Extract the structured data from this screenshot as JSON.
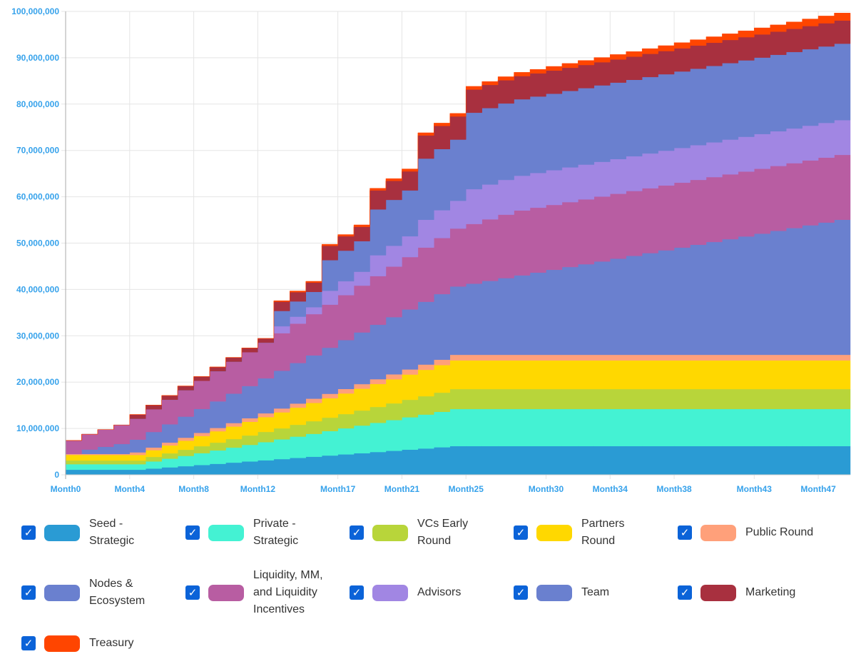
{
  "chart_data": {
    "type": "area",
    "stacked": true,
    "stepped": true,
    "title": "",
    "xlabel": "",
    "ylabel": "",
    "ylim": [
      0,
      100000000
    ],
    "yticks": [
      "0",
      "10,000,000",
      "20,000,000",
      "30,000,000",
      "40,000,000",
      "50,000,000",
      "60,000,000",
      "70,000,000",
      "80,000,000",
      "90,000,000",
      "100,000,000"
    ],
    "grid": true,
    "legend_placement": "bottom",
    "categories": [
      "Month0",
      "Month1",
      "Month2",
      "Month3",
      "Month4",
      "Month5",
      "Month6",
      "Month7",
      "Month8",
      "Month9",
      "Month10",
      "Month11",
      "Month12",
      "Month13",
      "Month14",
      "Month15",
      "Month16",
      "Month17",
      "Month18",
      "Month19",
      "Month20",
      "Month21",
      "Month22",
      "Month23",
      "Month24",
      "Month25",
      "Month26",
      "Month27",
      "Month28",
      "Month29",
      "Month30",
      "Month31",
      "Month32",
      "Month33",
      "Month34",
      "Month35",
      "Month36",
      "Month37",
      "Month38",
      "Month39",
      "Month40",
      "Month41",
      "Month42",
      "Month43",
      "Month44",
      "Month45",
      "Month46",
      "Month47",
      "Month48"
    ],
    "xticks_shown": [
      "Month0",
      "Month4",
      "Month8",
      "Month12",
      "Month17",
      "Month21",
      "Month25",
      "Month30",
      "Month34",
      "Month38",
      "Month43",
      "Month47"
    ],
    "series": [
      {
        "name": [
          "Seed -",
          "Strategic"
        ],
        "color": "#2a9bd4",
        "values": [
          1100000,
          1100000,
          1100000,
          1100000,
          1100000,
          1355000,
          1610000,
          1865000,
          2120000,
          2375000,
          2630000,
          2885000,
          3140000,
          3395000,
          3650000,
          3905000,
          4160000,
          4415000,
          4670000,
          4925000,
          5180000,
          5435000,
          5690000,
          5945000,
          6200000,
          6200000,
          6200000,
          6200000,
          6200000,
          6200000,
          6200000,
          6200000,
          6200000,
          6200000,
          6200000,
          6200000,
          6200000,
          6200000,
          6200000,
          6200000,
          6200000,
          6200000,
          6200000,
          6200000,
          6200000,
          6200000,
          6200000,
          6200000,
          6200000
        ]
      },
      {
        "name": [
          "Private -",
          "Strategic"
        ],
        "color": "#44f2d3",
        "values": [
          1200000,
          1200000,
          1200000,
          1200000,
          1200000,
          1540000,
          1880000,
          2220000,
          2560000,
          2900000,
          3240000,
          3580000,
          3920000,
          4260000,
          4600000,
          4940000,
          5280000,
          5620000,
          5960000,
          6300000,
          6640000,
          6980000,
          7320000,
          7660000,
          8000000,
          8000000,
          8000000,
          8000000,
          8000000,
          8000000,
          8000000,
          8000000,
          8000000,
          8000000,
          8000000,
          8000000,
          8000000,
          8000000,
          8000000,
          8000000,
          8000000,
          8000000,
          8000000,
          8000000,
          8000000,
          8000000,
          8000000,
          8000000,
          8000000
        ]
      },
      {
        "name": [
          "VCs Early",
          "Round"
        ],
        "color": "#b8d53a",
        "values": [
          800000,
          800000,
          800000,
          800000,
          800000,
          975000,
          1150000,
          1325000,
          1500000,
          1675000,
          1850000,
          2025000,
          2200000,
          2375000,
          2550000,
          2725000,
          2900000,
          3075000,
          3250000,
          3425000,
          3600000,
          3775000,
          3950000,
          4125000,
          4300000,
          4300000,
          4300000,
          4300000,
          4300000,
          4300000,
          4300000,
          4300000,
          4300000,
          4300000,
          4300000,
          4300000,
          4300000,
          4300000,
          4300000,
          4300000,
          4300000,
          4300000,
          4300000,
          4300000,
          4300000,
          4300000,
          4300000,
          4300000,
          4300000
        ]
      },
      {
        "name": [
          "Partners",
          "Round"
        ],
        "color": "#ffd800",
        "values": [
          1200000,
          1200000,
          1200000,
          1200000,
          1200000,
          1450000,
          1700000,
          1950000,
          2200000,
          2450000,
          2700000,
          2950000,
          3200000,
          3450000,
          3700000,
          3950000,
          4200000,
          4450000,
          4700000,
          4950000,
          5200000,
          5450000,
          5700000,
          5950000,
          6200000,
          6200000,
          6200000,
          6200000,
          6200000,
          6200000,
          6200000,
          6200000,
          6200000,
          6200000,
          6200000,
          6200000,
          6200000,
          6200000,
          6200000,
          6200000,
          6200000,
          6200000,
          6200000,
          6200000,
          6200000,
          6200000,
          6200000,
          6200000,
          6200000
        ]
      },
      {
        "name": [
          "Public Round"
        ],
        "color": "#ffa07a",
        "values": [
          200000,
          200000,
          200000,
          200000,
          550000,
          580000,
          620000,
          650000,
          680000,
          710000,
          750000,
          780000,
          810000,
          840000,
          880000,
          910000,
          940000,
          970000,
          1000000,
          1040000,
          1070000,
          1100000,
          1140000,
          1170000,
          1200000,
          1200000,
          1200000,
          1200000,
          1200000,
          1200000,
          1200000,
          1200000,
          1200000,
          1200000,
          1200000,
          1200000,
          1200000,
          1200000,
          1200000,
          1200000,
          1200000,
          1200000,
          1200000,
          1200000,
          1200000,
          1200000,
          1200000,
          1200000,
          1200000
        ]
      },
      {
        "name": [
          "Nodes &",
          "Ecosystem"
        ],
        "color": "#6a80cf",
        "values": [
          0,
          950000,
          1550000,
          2150000,
          2750000,
          3350000,
          3950000,
          4550000,
          5150000,
          5750000,
          6350000,
          6950000,
          7550000,
          8150000,
          8750000,
          9350000,
          9950000,
          10550000,
          11150000,
          11750000,
          12350000,
          12950000,
          13550000,
          14150000,
          14750000,
          15350000,
          15950000,
          16550000,
          17150000,
          17750000,
          18350000,
          18950000,
          19550000,
          20150000,
          20750000,
          21350000,
          21950000,
          22550000,
          23150000,
          23750000,
          24350000,
          24950000,
          25550000,
          26150000,
          26750000,
          27350000,
          27950000,
          28550000,
          29150000
        ]
      },
      {
        "name": [
          "Liquidity, MM,",
          "and Liquidity",
          "Incentives"
        ],
        "color": "#b85da2",
        "values": [
          2900000,
          3300000,
          3700000,
          4100000,
          4500000,
          4900000,
          5300000,
          5700000,
          6100000,
          6500000,
          6900000,
          7300000,
          7700000,
          8100000,
          8500000,
          8900000,
          9300000,
          9700000,
          10100000,
          10500000,
          10900000,
          11300000,
          11700000,
          12100000,
          12500000,
          12900000,
          13300000,
          13700000,
          14000000,
          14000000,
          14000000,
          14000000,
          14000000,
          14000000,
          14000000,
          14000000,
          14000000,
          14000000,
          14000000,
          14000000,
          14000000,
          14000000,
          14000000,
          14000000,
          14000000,
          14000000,
          14000000,
          14000000,
          14000000
        ]
      },
      {
        "name": [
          "Advisors"
        ],
        "color": "#a186e3",
        "values": [
          0,
          0,
          0,
          0,
          0,
          0,
          0,
          0,
          0,
          0,
          0,
          0,
          0,
          1500000,
          1500000,
          1500000,
          3000000,
          3000000,
          3000000,
          4500000,
          4500000,
          4500000,
          6000000,
          6000000,
          6000000,
          7500000,
          7500000,
          7500000,
          7500000,
          7500000,
          7500000,
          7500000,
          7500000,
          7500000,
          7500000,
          7500000,
          7500000,
          7500000,
          7500000,
          7500000,
          7500000,
          7500000,
          7500000,
          7500000,
          7500000,
          7500000,
          7500000,
          7500000,
          7500000
        ]
      },
      {
        "name": [
          "Team"
        ],
        "color": "#6a80cf",
        "values": [
          0,
          0,
          0,
          0,
          0,
          0,
          0,
          0,
          0,
          0,
          0,
          0,
          0,
          3300000,
          3300000,
          3300000,
          6600000,
          6600000,
          6600000,
          9900000,
          9900000,
          9900000,
          13200000,
          13200000,
          13200000,
          16500000,
          16500000,
          16500000,
          16500000,
          16500000,
          16500000,
          16500000,
          16500000,
          16500000,
          16500000,
          16500000,
          16500000,
          16500000,
          16500000,
          16500000,
          16500000,
          16500000,
          16500000,
          16500000,
          16500000,
          16500000,
          16500000,
          16500000,
          16500000
        ]
      },
      {
        "name": [
          "Marketing"
        ],
        "color": "#a8303f",
        "values": [
          0,
          0,
          0,
          0,
          900000,
          900000,
          900000,
          900000,
          900000,
          900000,
          900000,
          900000,
          900000,
          2000000,
          2000000,
          2000000,
          3100000,
          3100000,
          3100000,
          4100000,
          4100000,
          4100000,
          5000000,
          5000000,
          5000000,
          5000000,
          5000000,
          5000000,
          5000000,
          5000000,
          5000000,
          5000000,
          5000000,
          5000000,
          5000000,
          5000000,
          5000000,
          5000000,
          5000000,
          5000000,
          5000000,
          5000000,
          5000000,
          5000000,
          5000000,
          5000000,
          5000000,
          5000000,
          5000000
        ]
      },
      {
        "name": [
          "Treasury"
        ],
        "color": "#ff4500",
        "values": [
          0,
          0,
          0,
          0,
          0,
          0,
          0,
          0,
          0,
          0,
          0,
          0,
          0,
          200000,
          240000,
          280000,
          320000,
          360000,
          400000,
          440000,
          480000,
          520000,
          560000,
          600000,
          640000,
          680000,
          720000,
          760000,
          800000,
          840000,
          880000,
          920000,
          960000,
          1000000,
          1040000,
          1080000,
          1120000,
          1160000,
          1200000,
          1240000,
          1280000,
          1320000,
          1360000,
          1400000,
          1440000,
          1480000,
          1520000,
          1560000,
          1600000
        ]
      }
    ]
  },
  "legend": {
    "checked_icon": "checkmark-icon",
    "check_glyph": "✓"
  }
}
